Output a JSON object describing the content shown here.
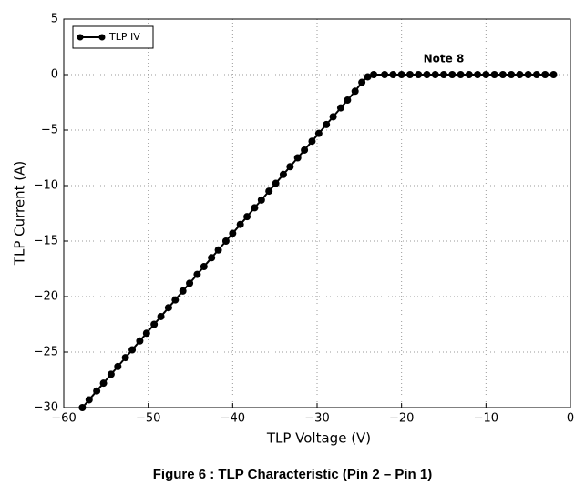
{
  "chart_data": {
    "type": "line",
    "xlabel": "TLP Voltage (V)",
    "ylabel": "TLP Current (A)",
    "annotation": "Note 8",
    "caption": "Figure 6 : TLP Characteristic (Pin 2 – Pin 1)",
    "xlim": [
      -60,
      0
    ],
    "xticks": [
      {
        "value": -60,
        "label": "−60"
      },
      {
        "value": -50,
        "label": "−50"
      },
      {
        "value": -40,
        "label": "−40"
      },
      {
        "value": -30,
        "label": "−30"
      },
      {
        "value": -20,
        "label": "−20"
      },
      {
        "value": -10,
        "label": "−10"
      },
      0
    ],
    "ylim": [
      -30,
      5
    ],
    "yticks": [
      {
        "value": -30,
        "label": "−30"
      },
      {
        "value": -25,
        "label": "−25"
      },
      {
        "value": -20,
        "label": "−20"
      },
      {
        "value": -15,
        "label": "−15"
      },
      {
        "value": -10,
        "label": "−10"
      },
      {
        "value": -5,
        "label": "−5"
      },
      0,
      5
    ],
    "grid": true,
    "legend": "upper left",
    "series": [
      {
        "name": "TLP IV",
        "color": "#000000",
        "x": [
          -57.8,
          -57.0,
          -56.1,
          -55.3,
          -54.4,
          -53.6,
          -52.7,
          -51.9,
          -51.0,
          -50.2,
          -49.3,
          -48.5,
          -47.6,
          -46.8,
          -45.9,
          -45.1,
          -44.2,
          -43.4,
          -42.5,
          -41.7,
          -40.8,
          -40.0,
          -39.1,
          -38.3,
          -37.4,
          -36.6,
          -35.7,
          -34.9,
          -34.0,
          -33.2,
          -32.3,
          -31.5,
          -30.6,
          -29.8,
          -28.9,
          -28.1,
          -27.2,
          -26.4,
          -25.5,
          -24.7,
          -24.0,
          -23.3,
          -22,
          -21,
          -20,
          -19,
          -18,
          -17,
          -16,
          -15,
          -14,
          -13,
          -12,
          -11,
          -10,
          -9,
          -8,
          -7,
          -6,
          -5,
          -4,
          -3,
          -2
        ],
        "values": [
          -30,
          -29.3,
          -28.5,
          -27.8,
          -27,
          -26.3,
          -25.5,
          -24.8,
          -24,
          -23.3,
          -22.5,
          -21.8,
          -21,
          -20.3,
          -19.5,
          -18.8,
          -18,
          -17.3,
          -16.5,
          -15.8,
          -15,
          -14.3,
          -13.5,
          -12.8,
          -12,
          -11.3,
          -10.5,
          -9.8,
          -9,
          -8.3,
          -7.5,
          -6.8,
          -6,
          -5.3,
          -4.5,
          -3.8,
          -3,
          -2.3,
          -1.5,
          -0.7,
          -0.2,
          0,
          0,
          0,
          0,
          0,
          0,
          0,
          0,
          0,
          0,
          0,
          0,
          0,
          0,
          0,
          0,
          0,
          0,
          0,
          0,
          0,
          0
        ]
      }
    ]
  }
}
